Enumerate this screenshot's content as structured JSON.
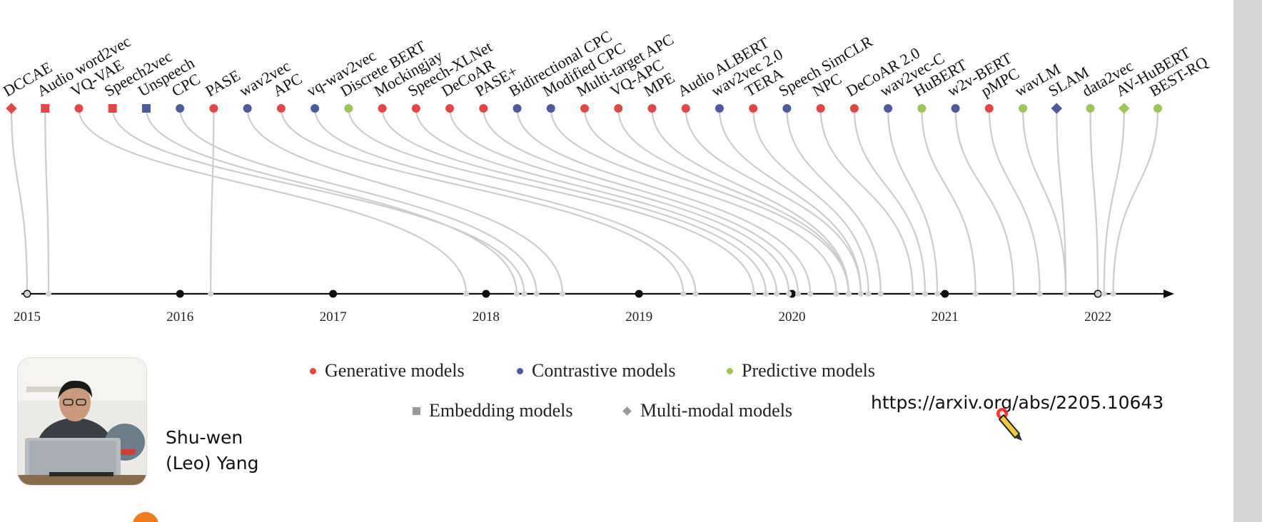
{
  "colors": {
    "generative": "#e04848",
    "contrastive": "#4d5b9c",
    "predictive": "#9ec45a",
    "neutral": "#9a9a9a",
    "curve": "#cccccc",
    "axis": "#111111"
  },
  "timeline": {
    "years": [
      "2015",
      "2016",
      "2017",
      "2018",
      "2019",
      "2020",
      "2021",
      "2022"
    ],
    "models": [
      {
        "name": "DCCAE",
        "type": "generative",
        "shape": "diamond",
        "date": 2015.0
      },
      {
        "name": "Audio word2vec",
        "type": "generative",
        "shape": "square",
        "date": 2015.14
      },
      {
        "name": "VQ-VAE",
        "type": "generative",
        "shape": "circle",
        "date": 2017.87
      },
      {
        "name": "Speech2vec",
        "type": "generative",
        "shape": "square",
        "date": 2018.25
      },
      {
        "name": "Unspeech",
        "type": "contrastive",
        "shape": "square",
        "date": 2018.2
      },
      {
        "name": "CPC",
        "type": "contrastive",
        "shape": "circle",
        "date": 2018.33
      },
      {
        "name": "PASE",
        "type": "generative",
        "shape": "circle",
        "date": 2016.2
      },
      {
        "name": "wav2vec",
        "type": "contrastive",
        "shape": "circle",
        "date": 2018.5
      },
      {
        "name": "APC",
        "type": "generative",
        "shape": "circle",
        "date": 2019.29
      },
      {
        "name": "vq-wav2vec",
        "type": "contrastive",
        "shape": "circle",
        "date": 2019.37
      },
      {
        "name": "Discrete BERT",
        "type": "predictive",
        "shape": "circle",
        "date": 2019.75
      },
      {
        "name": "Mockingjay",
        "type": "generative",
        "shape": "circle",
        "date": 2019.83
      },
      {
        "name": "Speech-XLNet",
        "type": "generative",
        "shape": "circle",
        "date": 2019.9
      },
      {
        "name": "DeCoAR",
        "type": "generative",
        "shape": "circle",
        "date": 2019.98
      },
      {
        "name": "PASE+",
        "type": "generative",
        "shape": "circle",
        "date": 2020.04
      },
      {
        "name": "Bidirectional CPC",
        "type": "contrastive",
        "shape": "circle",
        "date": 2020.12
      },
      {
        "name": "Modified CPC",
        "type": "contrastive",
        "shape": "circle",
        "date": 2020.29
      },
      {
        "name": "Multi-target APC",
        "type": "generative",
        "shape": "circle",
        "date": 2020.37
      },
      {
        "name": "VQ-APC",
        "type": "generative",
        "shape": "circle",
        "date": 2020.37
      },
      {
        "name": "MPE",
        "type": "generative",
        "shape": "circle",
        "date": 2020.37
      },
      {
        "name": "Audio ALBERT",
        "type": "generative",
        "shape": "circle",
        "date": 2020.45
      },
      {
        "name": "wav2vec 2.0",
        "type": "contrastive",
        "shape": "circle",
        "date": 2020.45
      },
      {
        "name": "TERA",
        "type": "generative",
        "shape": "circle",
        "date": 2020.5
      },
      {
        "name": "Speech SimCLR",
        "type": "contrastive",
        "shape": "circle",
        "date": 2020.58
      },
      {
        "name": "NPC",
        "type": "generative",
        "shape": "circle",
        "date": 2020.79
      },
      {
        "name": "DeCoAR 2.0",
        "type": "generative",
        "shape": "circle",
        "date": 2020.87
      },
      {
        "name": "wav2vec-C",
        "type": "contrastive",
        "shape": "circle",
        "date": 2020.95
      },
      {
        "name": "HuBERT",
        "type": "predictive",
        "shape": "circle",
        "date": 2021.2
      },
      {
        "name": "w2v-BERT",
        "type": "contrastive",
        "shape": "circle",
        "date": 2021.45
      },
      {
        "name": "pMPC",
        "type": "generative",
        "shape": "circle",
        "date": 2021.62
      },
      {
        "name": "wavLM",
        "type": "predictive",
        "shape": "circle",
        "date": 2021.79
      },
      {
        "name": "SLAM",
        "type": "contrastive",
        "shape": "diamond",
        "date": 2021.79
      },
      {
        "name": "data2vec",
        "type": "predictive",
        "shape": "circle",
        "date": 2022.0
      },
      {
        "name": "AV-HuBERT",
        "type": "predictive",
        "shape": "diamond",
        "date": 2022.04
      },
      {
        "name": "BEST-RQ",
        "type": "predictive",
        "shape": "circle",
        "date": 2022.1
      }
    ]
  },
  "legend": [
    {
      "label": "Generative models",
      "marker": "circle",
      "color_key": "generative"
    },
    {
      "label": "Contrastive models",
      "marker": "circle",
      "color_key": "contrastive"
    },
    {
      "label": "Predictive models",
      "marker": "circle",
      "color_key": "predictive"
    },
    {
      "label": "Embedding models",
      "marker": "square",
      "color_key": "neutral"
    },
    {
      "label": "Multi-modal models",
      "marker": "diamond",
      "color_key": "neutral"
    }
  ],
  "paper_url": "https://arxiv.org/abs/2205.10643",
  "author": {
    "name_line1": "Shu-wen",
    "name_line2": "(Leo) Yang"
  },
  "icons": {
    "cursor": "pen-cursor-icon",
    "photo": "presenter-photo"
  }
}
